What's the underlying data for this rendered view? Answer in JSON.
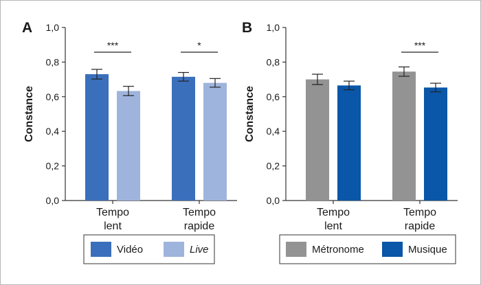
{
  "chart_data": [
    {
      "panel": "A",
      "type": "bar",
      "ylabel": "Constance",
      "ylim": [
        0,
        1.0
      ],
      "yticks": [
        "0,0",
        "0,2",
        "0,4",
        "0,6",
        "0,8",
        "1,0"
      ],
      "categories": [
        [
          "Tempo",
          "lent"
        ],
        [
          "Tempo",
          "rapide"
        ]
      ],
      "series": [
        {
          "name": "Vidéo",
          "color": "#3a6fbb",
          "values": [
            0.73,
            0.715
          ],
          "err": [
            0.028,
            0.025
          ]
        },
        {
          "name": "Live",
          "color": "#9fb4dc",
          "values": [
            0.633,
            0.68
          ],
          "err": [
            0.027,
            0.025
          ],
          "italic": true
        }
      ],
      "significance": [
        "***",
        "*"
      ],
      "grid": false,
      "legend": "bottom"
    },
    {
      "panel": "B",
      "type": "bar",
      "ylabel": "Constance",
      "ylim": [
        0,
        1.0
      ],
      "yticks": [
        "0,0",
        "0,2",
        "0,4",
        "0,6",
        "0,8",
        "1,0"
      ],
      "categories": [
        [
          "Tempo",
          "lent"
        ],
        [
          "Tempo",
          "rapide"
        ]
      ],
      "series": [
        {
          "name": "Métronome",
          "color": "#939393",
          "values": [
            0.7,
            0.745
          ],
          "err": [
            0.03,
            0.027
          ]
        },
        {
          "name": "Musique",
          "color": "#0a56a8",
          "values": [
            0.665,
            0.653
          ],
          "err": [
            0.025,
            0.025
          ]
        }
      ],
      "significance": [
        "",
        "***"
      ],
      "grid": false,
      "legend": "bottom"
    }
  ]
}
